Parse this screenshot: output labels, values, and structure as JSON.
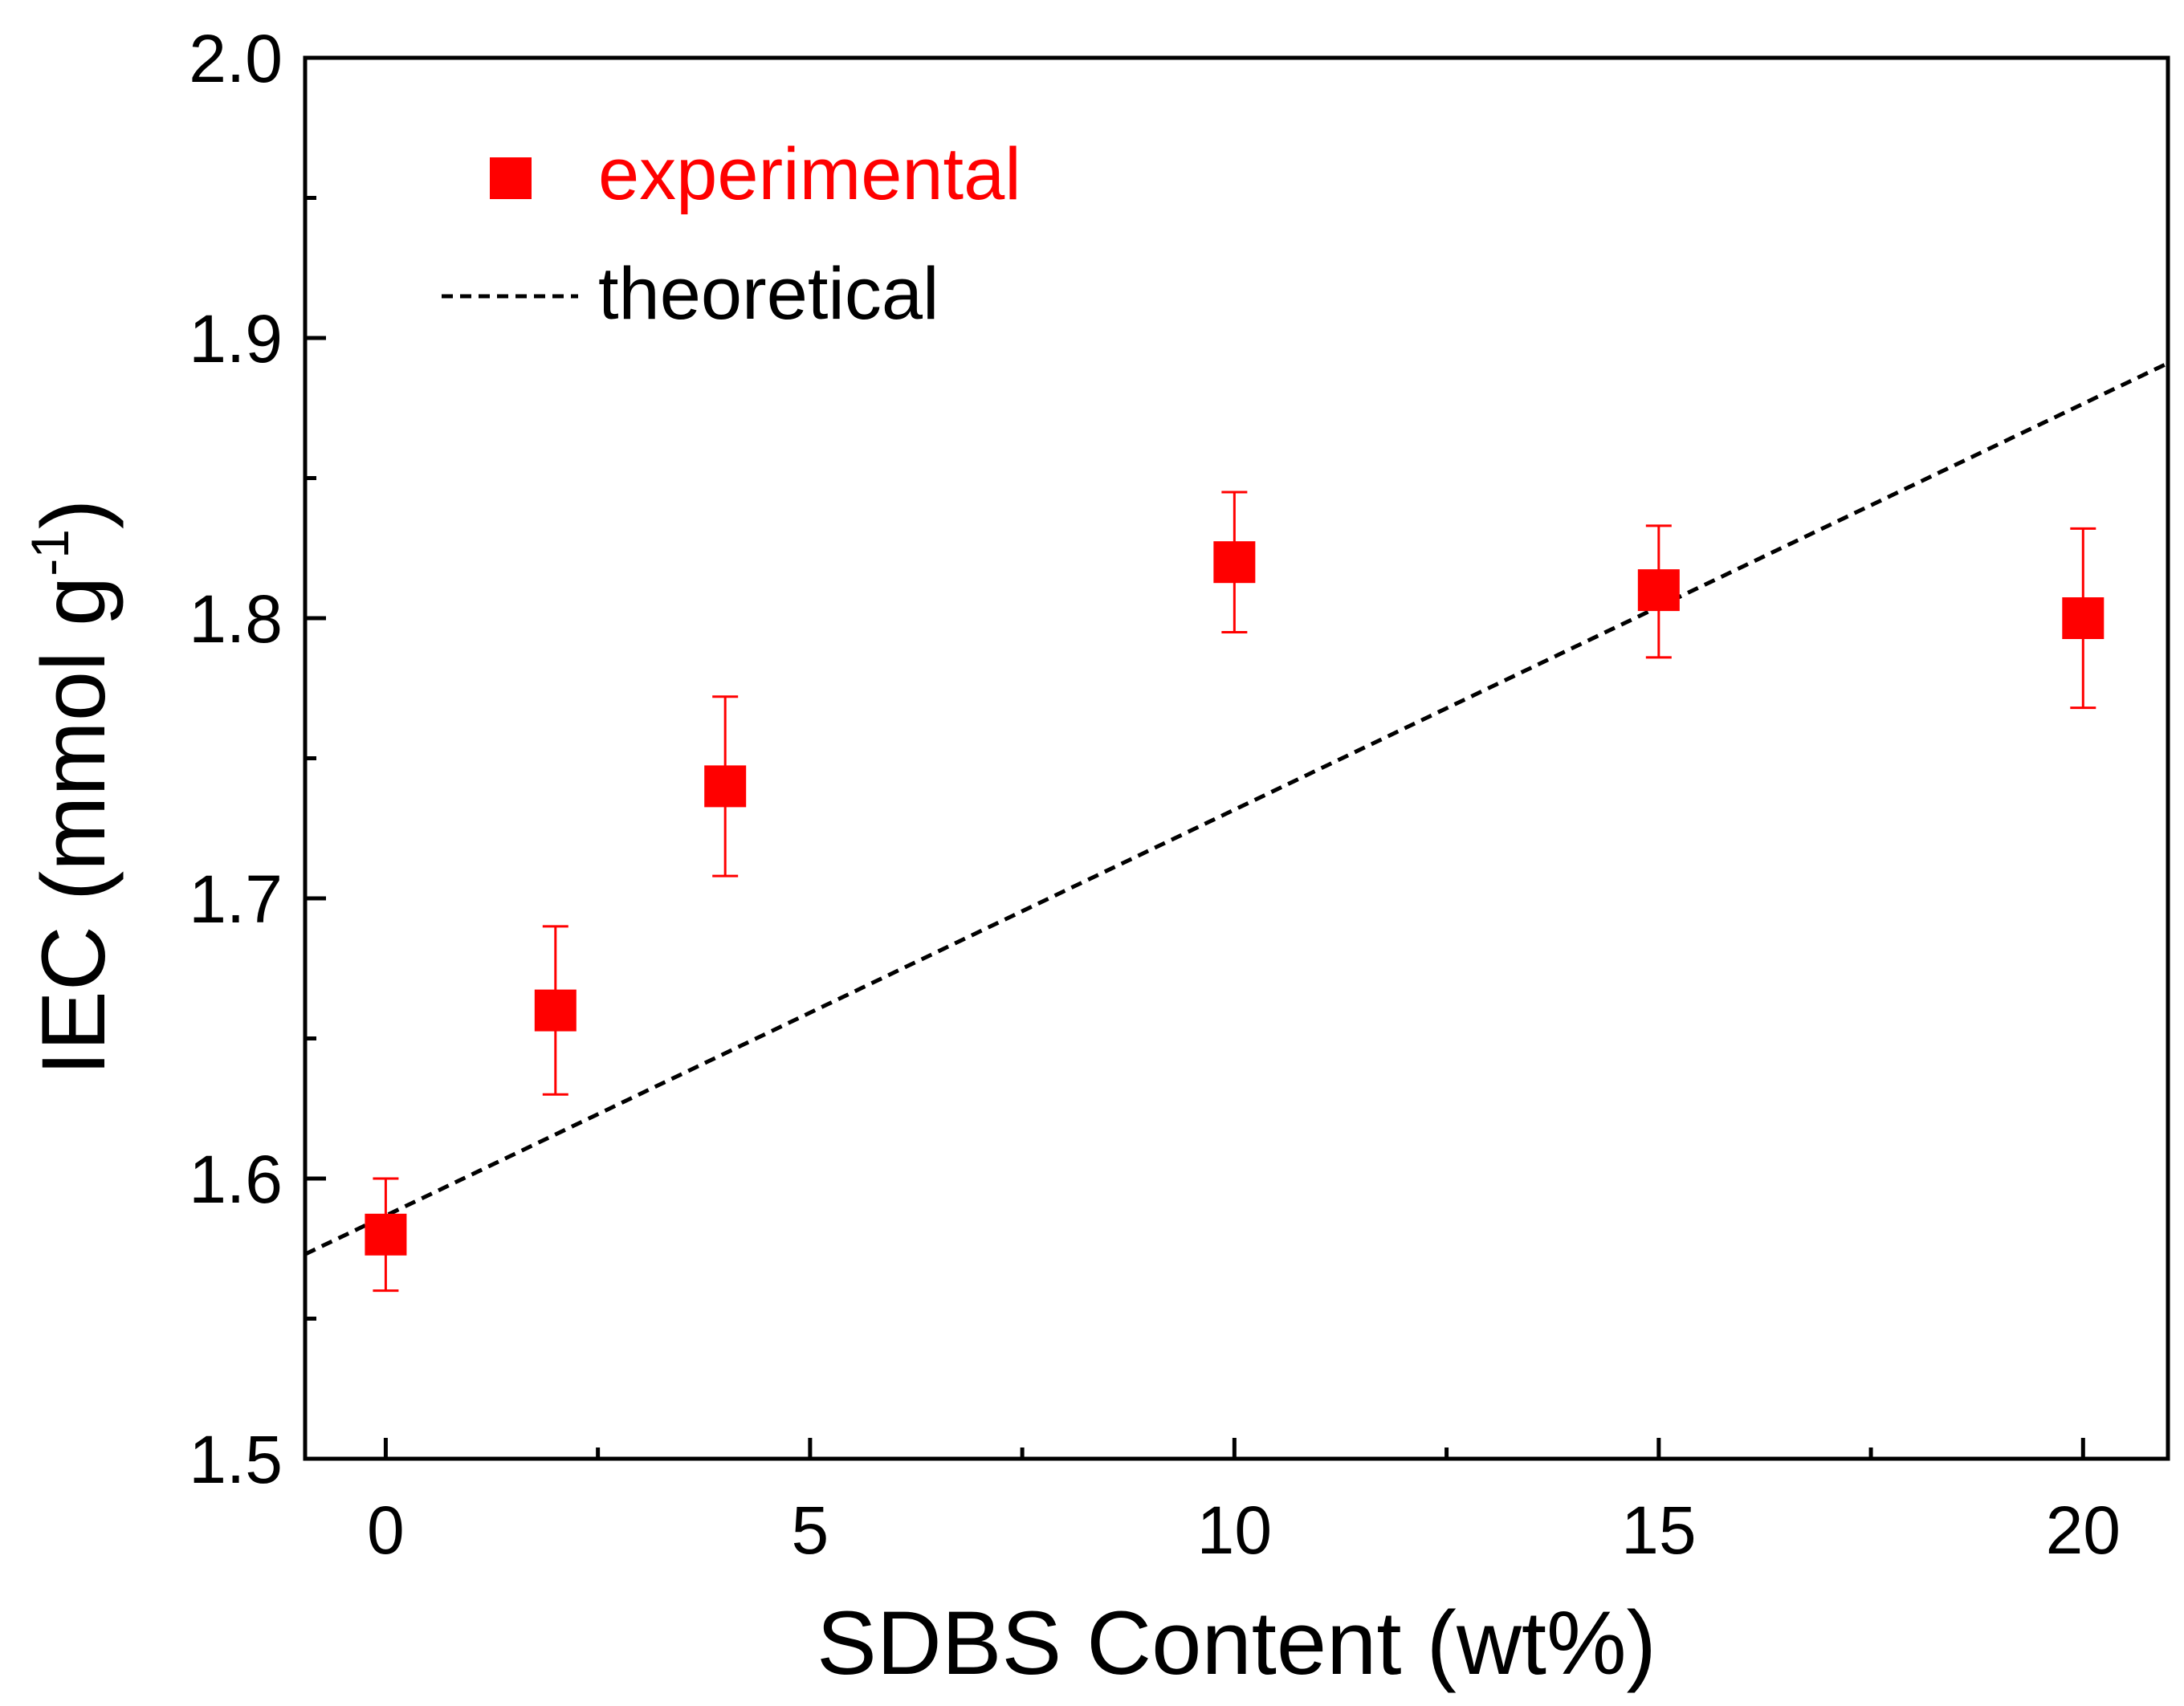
{
  "chart_data": {
    "type": "scatter",
    "xlabel": "SDBS Content (wt%)",
    "ylabel_main": "IEC (mmol g",
    "ylabel_sup": "-1",
    "ylabel_close": ")",
    "xlim": [
      -0.95,
      21.0
    ],
    "ylim": [
      1.5,
      2.0
    ],
    "xticks": [
      0,
      5,
      10,
      15,
      20
    ],
    "xtick_labels": [
      "0",
      "5",
      "10",
      "15",
      "20"
    ],
    "xminor": [
      2.5,
      7.5,
      12.5,
      17.5
    ],
    "yticks": [
      1.5,
      1.6,
      1.7,
      1.8,
      1.9,
      2.0
    ],
    "ytick_labels": [
      "1.5",
      "1.6",
      "1.7",
      "1.8",
      "1.9",
      "2.0"
    ],
    "yminor": [
      1.55,
      1.65,
      1.75,
      1.85,
      1.95
    ],
    "grid": false,
    "legend_position": "top-left",
    "series": [
      {
        "name": "experimental",
        "kind": "points",
        "color": "#ff0000",
        "x": [
          0,
          2,
          4,
          10,
          15,
          20
        ],
        "y": [
          1.58,
          1.66,
          1.74,
          1.82,
          1.81,
          1.8
        ],
        "yerr_low": [
          1.56,
          1.63,
          1.708,
          1.795,
          1.786,
          1.768
        ],
        "yerr_high": [
          1.6,
          1.69,
          1.772,
          1.845,
          1.833,
          1.832
        ]
      },
      {
        "name": "theoretical",
        "kind": "dashed-line",
        "color": "#000000",
        "x": [
          -0.95,
          21.0
        ],
        "y": [
          1.573,
          1.891
        ]
      }
    ]
  }
}
